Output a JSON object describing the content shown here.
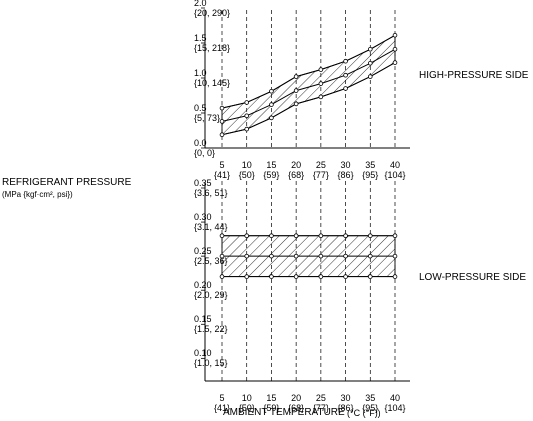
{
  "chart_data": {
    "type": "area",
    "ylabel_main": "REFRIGERANT PRESSURE",
    "ylabel_units": "(MPa {kgf·cm², psi})",
    "xlabel_main": "AMBIENT TEMPERATURE",
    "xlabel_units": "(°C (°F))",
    "x_ticks": [
      {
        "c": "5",
        "f": "{41}"
      },
      {
        "c": "10",
        "f": "{50}"
      },
      {
        "c": "15",
        "f": "{59}"
      },
      {
        "c": "20",
        "f": "{68}"
      },
      {
        "c": "25",
        "f": "{77}"
      },
      {
        "c": "30",
        "f": "{86}"
      },
      {
        "c": "35",
        "f": "{95}"
      },
      {
        "c": "40",
        "f": "{104}"
      }
    ],
    "x": [
      5,
      10,
      15,
      20,
      25,
      30,
      35,
      40
    ],
    "panels": [
      {
        "name": "HIGH-PRESSURE SIDE",
        "ylim": [
          0,
          2.0
        ],
        "y_ticks": [
          {
            "v": 2.0,
            "top": "2.0",
            "bottom": "{20, 290}"
          },
          {
            "v": 1.5,
            "top": "1.5",
            "bottom": "{15, 218}"
          },
          {
            "v": 1.0,
            "top": "1.0",
            "bottom": "{10, 145}"
          },
          {
            "v": 0.5,
            "top": "0.5",
            "bottom": "{5, 73}"
          },
          {
            "v": 0.0,
            "top": "0.0",
            "bottom": "{0, 0}"
          }
        ],
        "upper": [
          0.57,
          0.65,
          0.81,
          1.02,
          1.12,
          1.24,
          1.41,
          1.61
        ],
        "middle": [
          0.38,
          0.46,
          0.62,
          0.82,
          0.92,
          1.04,
          1.21,
          1.41
        ],
        "lower": [
          0.19,
          0.27,
          0.43,
          0.63,
          0.73,
          0.85,
          1.02,
          1.22
        ]
      },
      {
        "name": "LOW-PRESSURE SIDE",
        "ylim": [
          0.08,
          0.35
        ],
        "y_ticks": [
          {
            "v": 0.35,
            "top": "0.35",
            "bottom": "{3.6, 51}"
          },
          {
            "v": 0.3,
            "top": "0.30",
            "bottom": "{3.1, 44}"
          },
          {
            "v": 0.25,
            "top": "0.25",
            "bottom": "{2.5, 36}"
          },
          {
            "v": 0.2,
            "top": "0.20",
            "bottom": "{2.0, 29}"
          },
          {
            "v": 0.15,
            "top": "0.15",
            "bottom": "{1.5, 22}"
          },
          {
            "v": 0.1,
            "top": "0.10",
            "bottom": "{1.0, 15}"
          }
        ],
        "upper": [
          0.28,
          0.28,
          0.28,
          0.28,
          0.28,
          0.28,
          0.28,
          0.28
        ],
        "middle": [
          0.25,
          0.25,
          0.25,
          0.25,
          0.25,
          0.25,
          0.25,
          0.25
        ],
        "lower": [
          0.22,
          0.22,
          0.22,
          0.22,
          0.22,
          0.22,
          0.22,
          0.22
        ]
      }
    ]
  }
}
